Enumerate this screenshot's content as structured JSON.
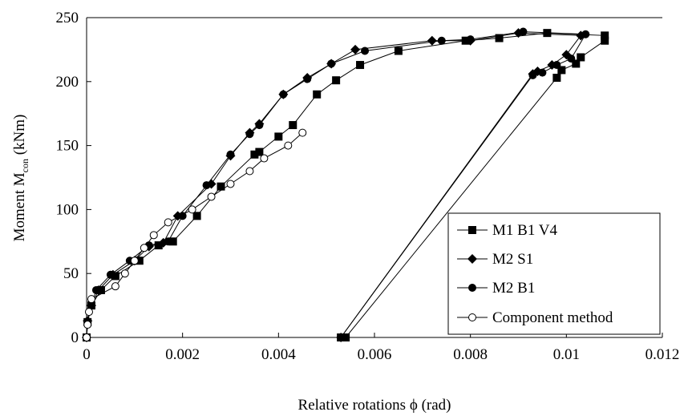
{
  "chart_data": {
    "type": "scatter",
    "title": "",
    "xlabel": "Relative rotations ϕ (rad)",
    "ylabel": {
      "main": "Moment M",
      "sub": "con",
      "unit": " (kNm)"
    },
    "xlim": [
      0,
      0.012
    ],
    "ylim": [
      0,
      250
    ],
    "x_ticks": [
      0,
      0.002,
      0.004,
      0.006,
      0.008,
      0.01,
      0.012
    ],
    "x_tick_labels": [
      "0",
      "0.002",
      "0.004",
      "0.006",
      "0.008",
      "0.01",
      "0.012"
    ],
    "y_ticks": [
      0,
      50,
      100,
      150,
      200,
      250
    ],
    "y_tick_labels": [
      "0",
      "50",
      "100",
      "150",
      "200",
      "250"
    ],
    "grid": false,
    "legend_position": "bottom-right",
    "series": [
      {
        "name": "M1 B1 V4",
        "marker": "square-filled",
        "color": "#000000",
        "points": [
          [
            0,
            0
          ],
          [
            2e-05,
            12
          ],
          [
            0.0001,
            25
          ],
          [
            0.0003,
            37
          ],
          [
            0.0006,
            48
          ],
          [
            0.0011,
            60
          ],
          [
            0.0015,
            72
          ],
          [
            0.0018,
            75
          ],
          [
            0.0023,
            95
          ],
          [
            0.0028,
            118
          ],
          [
            0.0035,
            143
          ],
          [
            0.0036,
            145
          ],
          [
            0.004,
            157
          ],
          [
            0.0043,
            166
          ],
          [
            0.0048,
            190
          ],
          [
            0.0052,
            201
          ],
          [
            0.0057,
            213
          ],
          [
            0.0065,
            224
          ],
          [
            0.0079,
            232
          ],
          [
            0.0086,
            234
          ],
          [
            0.0096,
            238
          ],
          [
            0.0108,
            236
          ],
          [
            0.0108,
            232
          ],
          [
            0.0103,
            219
          ],
          [
            0.0102,
            214
          ],
          [
            0.0099,
            209
          ],
          [
            0.0098,
            203
          ],
          [
            0.0054,
            0
          ],
          [
            0.0053,
            0
          ]
        ]
      },
      {
        "name": "M2 S1",
        "marker": "diamond-filled",
        "color": "#000000",
        "points": [
          [
            0,
            0
          ],
          [
            2e-05,
            13
          ],
          [
            0.0001,
            25
          ],
          [
            0.00025,
            37
          ],
          [
            0.00055,
            49
          ],
          [
            0.001,
            60
          ],
          [
            0.0013,
            71
          ],
          [
            0.0016,
            74
          ],
          [
            0.0019,
            95
          ],
          [
            0.0026,
            120
          ],
          [
            0.003,
            142
          ],
          [
            0.0034,
            160
          ],
          [
            0.0036,
            167
          ],
          [
            0.0041,
            190
          ],
          [
            0.0046,
            203
          ],
          [
            0.0051,
            214
          ],
          [
            0.0056,
            225
          ],
          [
            0.0072,
            232
          ],
          [
            0.008,
            232
          ],
          [
            0.009,
            238
          ],
          [
            0.0103,
            236
          ],
          [
            0.01,
            221
          ],
          [
            0.0097,
            213
          ],
          [
            0.0094,
            208
          ],
          [
            0.0093,
            206
          ],
          [
            0.0053,
            0
          ]
        ]
      },
      {
        "name": "M2 B1",
        "marker": "circle-filled",
        "color": "#000000",
        "points": [
          [
            0,
            0
          ],
          [
            2e-05,
            12
          ],
          [
            0.0001,
            25
          ],
          [
            0.0002,
            37
          ],
          [
            0.0005,
            49
          ],
          [
            0.0009,
            60
          ],
          [
            0.0013,
            72
          ],
          [
            0.0017,
            75
          ],
          [
            0.002,
            95
          ],
          [
            0.0025,
            119
          ],
          [
            0.003,
            143
          ],
          [
            0.0034,
            159
          ],
          [
            0.0036,
            166
          ],
          [
            0.0041,
            190
          ],
          [
            0.0046,
            202
          ],
          [
            0.0051,
            214
          ],
          [
            0.0058,
            224
          ],
          [
            0.0074,
            232
          ],
          [
            0.008,
            233
          ],
          [
            0.0091,
            239
          ],
          [
            0.0104,
            237
          ],
          [
            0.0101,
            218
          ],
          [
            0.0098,
            213
          ],
          [
            0.0095,
            207
          ],
          [
            0.0093,
            205
          ],
          [
            0.0053,
            0
          ]
        ]
      },
      {
        "name": "Component method",
        "marker": "circle-open",
        "color": "#000000",
        "points": [
          [
            0,
            0
          ],
          [
            2e-05,
            10
          ],
          [
            5e-05,
            20
          ],
          [
            0.0001,
            30
          ],
          [
            0.0006,
            40
          ],
          [
            0.0008,
            50
          ],
          [
            0.001,
            60
          ],
          [
            0.0012,
            70
          ],
          [
            0.0014,
            80
          ],
          [
            0.0017,
            90
          ],
          [
            0.0022,
            100
          ],
          [
            0.0026,
            110
          ],
          [
            0.003,
            120
          ],
          [
            0.0034,
            130
          ],
          [
            0.0037,
            140
          ],
          [
            0.0042,
            150
          ],
          [
            0.0045,
            160
          ]
        ]
      }
    ]
  }
}
